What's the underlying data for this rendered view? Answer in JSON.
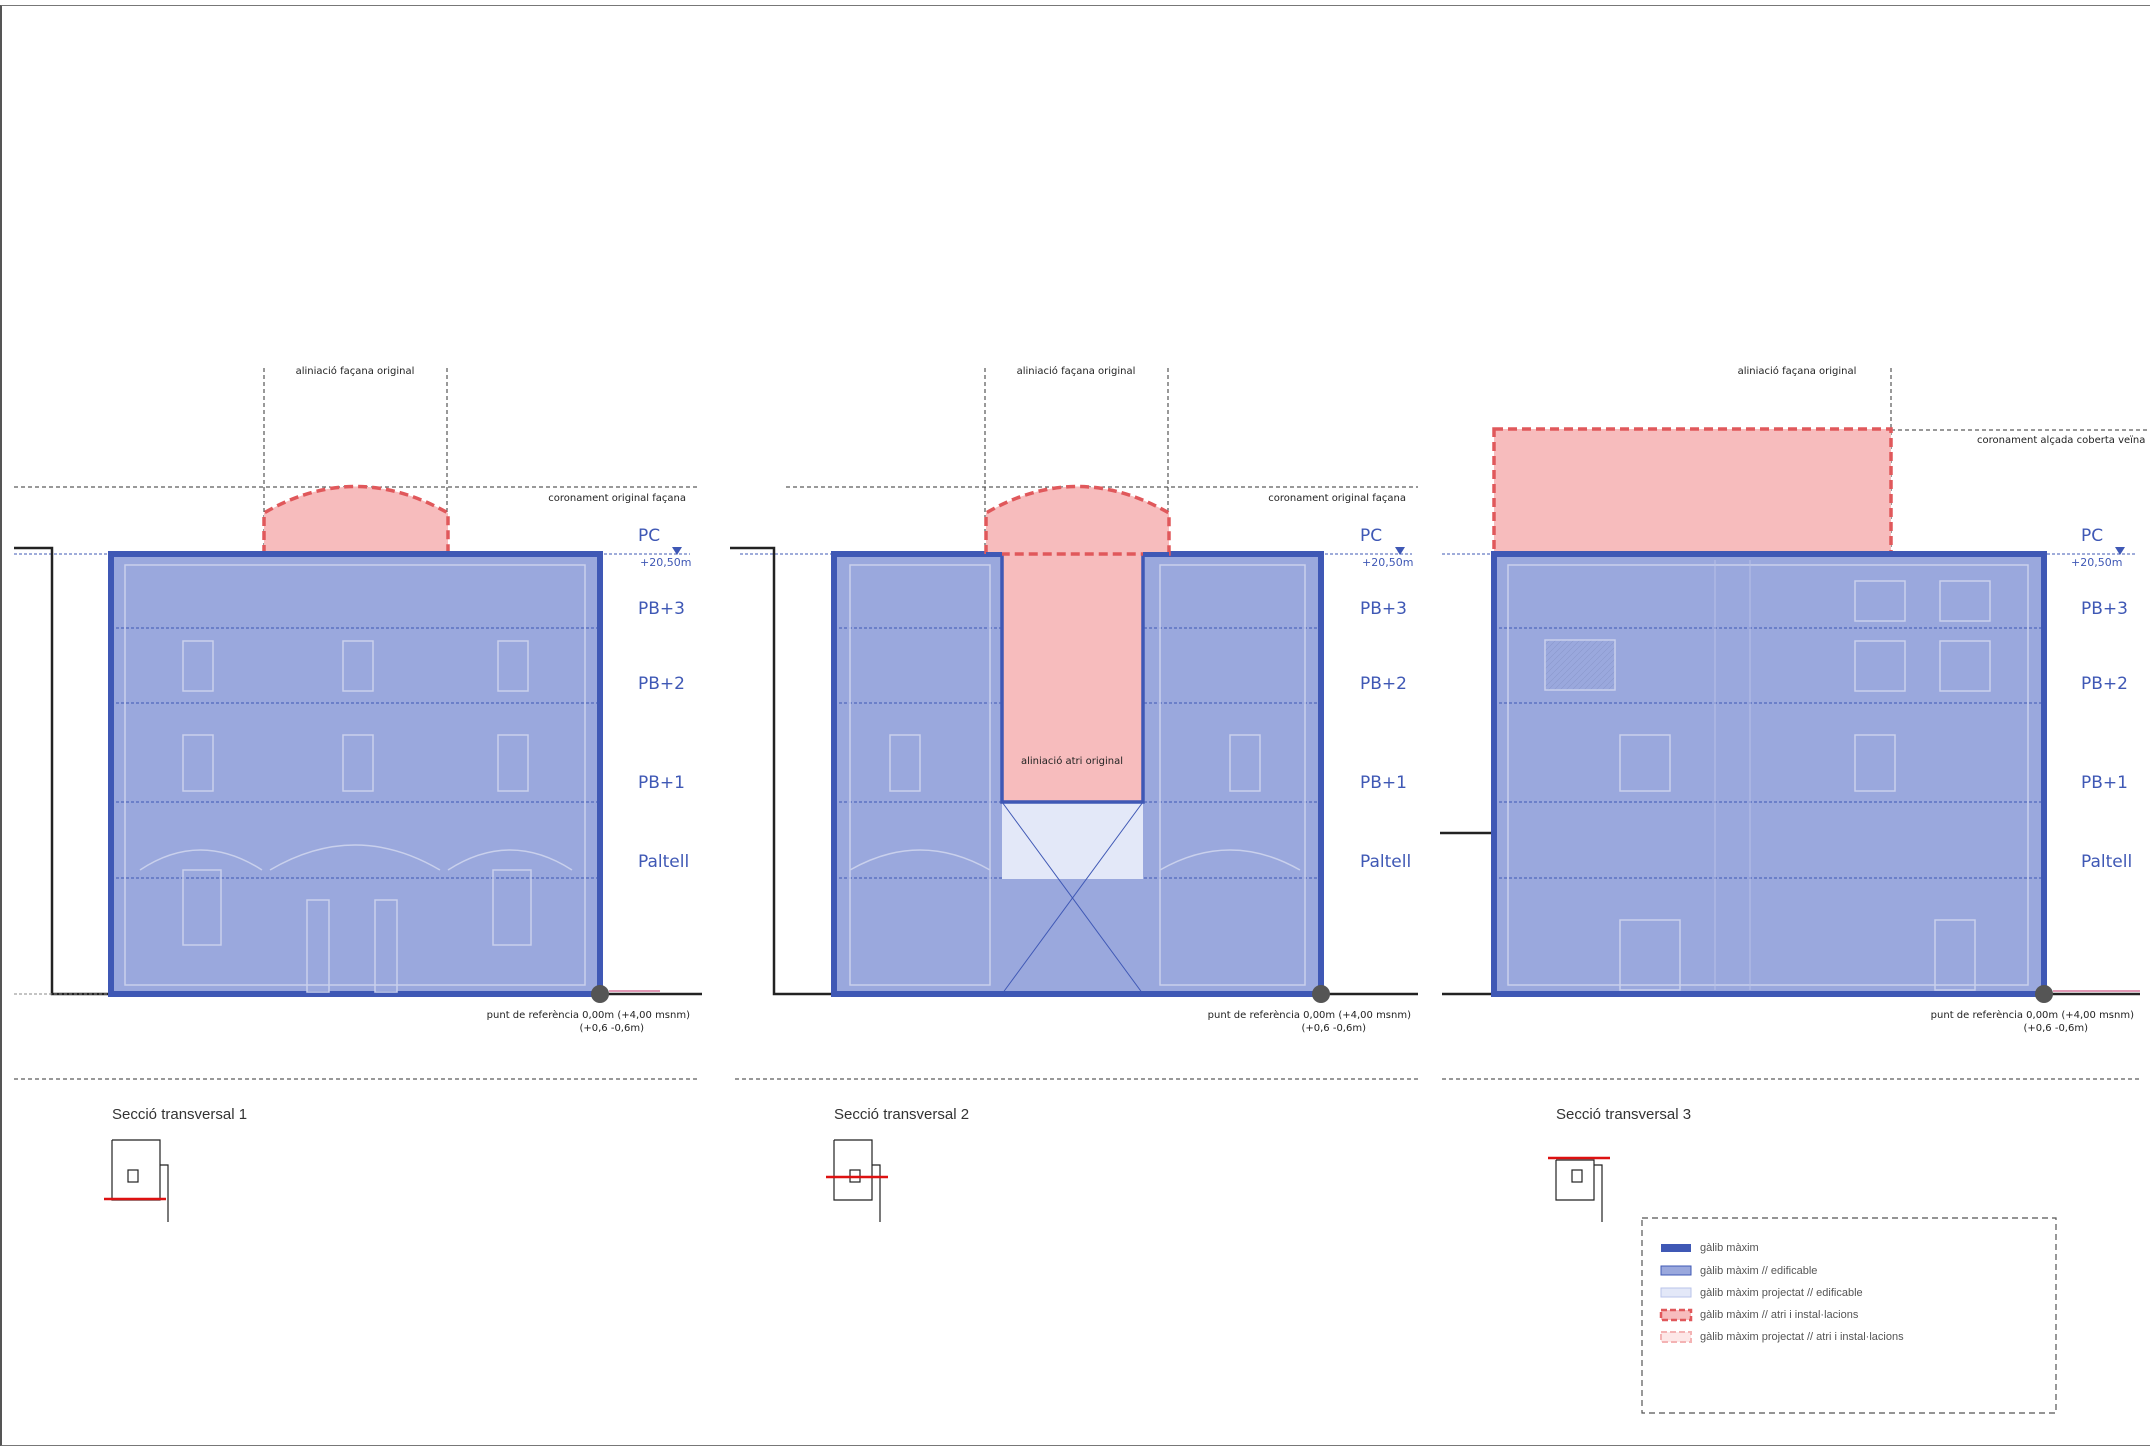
{
  "colors": {
    "blue_line": "#3f58b5",
    "blue_fill": "#9aa8dd",
    "blue_light": "#e3e8f8",
    "red_line": "#e0585b",
    "red_fill": "#f7bcbd"
  },
  "sections": [
    {
      "title": "Secció transversal 1",
      "facade_label": "aliniació façana original",
      "crown_label": "coronament original façana",
      "levels": [
        "PC",
        "PB+3",
        "PB+2",
        "PB+1",
        "Paltell"
      ],
      "elevation": "+20,50m",
      "reference_line1": "punt de referència 0,00m (+4,00 msnm)",
      "reference_line2": "(+0,6 -0,6m)"
    },
    {
      "title": "Secció transversal 2",
      "facade_label": "aliniació façana original",
      "crown_label": "coronament original façana",
      "atrium_label": "aliniació atri original",
      "levels": [
        "PC",
        "PB+3",
        "PB+2",
        "PB+1",
        "Paltell"
      ],
      "elevation": "+20,50m",
      "reference_line1": "punt de referència 0,00m (+4,00 msnm)",
      "reference_line2": "(+0,6 -0,6m)"
    },
    {
      "title": "Secció transversal 3",
      "facade_label": "aliniació façana original",
      "crown_label": "coronament alçada coberta veïna",
      "levels": [
        "PC",
        "PB+3",
        "PB+2",
        "PB+1",
        "Paltell"
      ],
      "elevation": "+20,50m",
      "reference_line1": "punt de referència 0,00m (+4,00 msnm)",
      "reference_line2": "(+0,6 -0,6m)"
    }
  ],
  "legend": {
    "items": [
      {
        "label": "gàlib màxim",
        "icon": "solid-blue-line-icon"
      },
      {
        "label": "gàlib màxim // edificable",
        "icon": "blue-fill-swatch-icon"
      },
      {
        "label": "gàlib màxim projectat // edificable",
        "icon": "light-blue-swatch-icon"
      },
      {
        "label": "gàlib màxim // atri i instal·lacions",
        "icon": "red-dashed-swatch-icon"
      },
      {
        "label": "gàlib màxim projectat // atri i instal·lacions",
        "icon": "light-red-dashed-swatch-icon"
      }
    ]
  }
}
